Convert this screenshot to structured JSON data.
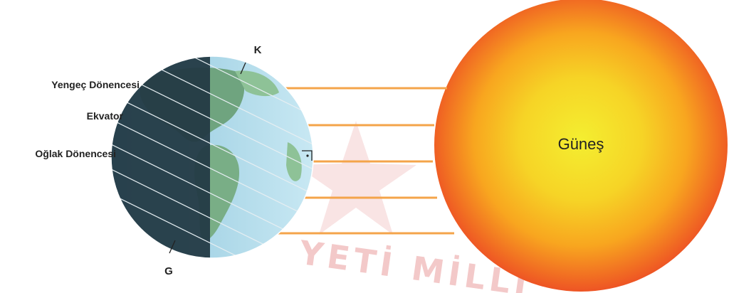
{
  "labels": {
    "north_pole": "K",
    "south_pole": "G",
    "tropic_of_cancer": "Yengeç Dönencesi",
    "equator": "Ekvator",
    "tropic_of_capricorn": "Oğlak Dönencesi",
    "sun": "Güneş"
  },
  "watermark": "YETİ MİLLÎ",
  "colors": {
    "sun_core": "#f2ea2a",
    "sun_mid": "#f9b21d",
    "sun_edge": "#ef5a24",
    "ray": "#f4a44a",
    "night_side": "#233a45",
    "day_ocean": "#a8d6ea",
    "land_day": "#7fb88e",
    "watermark": "#f3c9c9"
  },
  "icons": {
    "right_angle": "right-angle-marker-icon"
  }
}
